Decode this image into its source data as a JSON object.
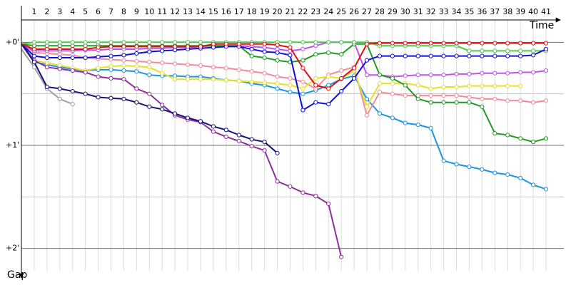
{
  "chart_data": {
    "type": "line",
    "x_label": "Time",
    "y_label": "Gap",
    "x": [
      0,
      1,
      2,
      3,
      4,
      5,
      6,
      7,
      8,
      9,
      10,
      11,
      12,
      13,
      14,
      15,
      16,
      17,
      18,
      19,
      20,
      21,
      22,
      23,
      24,
      25,
      26,
      27,
      28,
      29,
      30,
      31,
      32,
      33,
      34,
      35,
      36,
      37,
      38,
      39,
      40,
      41
    ],
    "xlim": [
      0,
      41
    ],
    "xticks": [
      1,
      2,
      3,
      4,
      5,
      6,
      7,
      8,
      9,
      10,
      11,
      12,
      13,
      14,
      15,
      16,
      17,
      18,
      19,
      20,
      21,
      22,
      23,
      24,
      25,
      26,
      27,
      28,
      29,
      30,
      31,
      32,
      33,
      34,
      35,
      36,
      37,
      38,
      39,
      40,
      41
    ],
    "ylim": [
      -13,
      133
    ],
    "yticks": [
      {
        "value": 0,
        "label": "+0'"
      },
      {
        "value": 60,
        "label": "+1'"
      },
      {
        "value": 120,
        "label": "+2'"
      }
    ],
    "minor_yticks": [
      30,
      90
    ],
    "grid": true,
    "series": [
      {
        "name": "Light blue",
        "color": "#1a94e6",
        "values": [
          1,
          11.5,
          13,
          14.5,
          15.5,
          16.5,
          16,
          16,
          16.5,
          17,
          19,
          19.5,
          19.5,
          20,
          20,
          21,
          22,
          22.5,
          24,
          25,
          27,
          29,
          30,
          28,
          25,
          21.5,
          19.5,
          33,
          41.5,
          44,
          47,
          48,
          50,
          69,
          71,
          72.5,
          74,
          76,
          77,
          79,
          83,
          85.5
        ]
      },
      {
        "name": "Pink",
        "color": "#f28a9a",
        "values": [
          1,
          6,
          6.5,
          7,
          7.5,
          9,
          9.5,
          10,
          10.5,
          11,
          11.5,
          12,
          12.5,
          13,
          13.5,
          14.5,
          15,
          16,
          17,
          18,
          20,
          21,
          23,
          27,
          19,
          16.5,
          14.5,
          42.5,
          29,
          30,
          31,
          31,
          31,
          31,
          31,
          32,
          33,
          33,
          34,
          34,
          35,
          34
        ]
      },
      {
        "name": "Yellow",
        "color": "#e6e02a",
        "values": [
          1,
          10.5,
          12,
          13.5,
          15,
          16.5,
          15,
          14,
          13.5,
          14,
          14.5,
          18,
          21.5,
          21.5,
          21.5,
          21.5,
          22,
          22.5,
          23,
          23.5,
          24,
          25,
          27,
          21,
          20,
          21,
          16.5,
          37.5,
          24,
          24,
          24,
          25,
          27,
          26,
          26,
          25.5,
          25.5,
          25.5,
          25.5,
          25.5,
          null,
          null
        ]
      },
      {
        "name": "Violet",
        "color": "#c052ee",
        "values": [
          1,
          5,
          5,
          5,
          5,
          4.5,
          4.5,
          4,
          4,
          4,
          3.5,
          3.5,
          3,
          3,
          2.5,
          2,
          2,
          2,
          2.5,
          3,
          4,
          5,
          4,
          2,
          0,
          0,
          0,
          19,
          19,
          20,
          19.5,
          19,
          19,
          19,
          18.5,
          18.5,
          18,
          18,
          18,
          17.5,
          17.5,
          16.5
        ]
      },
      {
        "name": "Purple",
        "color": "#8e2f9c",
        "values": [
          1,
          10.5,
          14.5,
          15.5,
          16.5,
          17.5,
          20,
          21,
          21.5,
          27,
          30,
          36.5,
          42.5,
          45,
          46.5,
          52,
          55,
          57.5,
          60.5,
          63,
          81,
          84,
          87.5,
          89.5,
          94,
          125,
          null,
          null,
          null,
          null,
          null,
          null,
          null,
          null,
          null,
          null,
          null,
          null,
          null,
          null,
          null,
          null
        ]
      },
      {
        "name": "Gray",
        "color": "#a0a0a0",
        "values": [
          4,
          14.5,
          27,
          33,
          36,
          null,
          null,
          null,
          null,
          null,
          null,
          null,
          null,
          null,
          null,
          null,
          null,
          null,
          null,
          null,
          null,
          null,
          null,
          null,
          null,
          null,
          null,
          null,
          null,
          null,
          null,
          null,
          null,
          null,
          null,
          null,
          null,
          null,
          null,
          null,
          null,
          null
        ]
      },
      {
        "name": "Navy",
        "color": "#14147a",
        "values": [
          1,
          11.5,
          26,
          27,
          28.5,
          30,
          32,
          32.5,
          33,
          35,
          37.5,
          39,
          41.5,
          44,
          46,
          49,
          51,
          54,
          56.5,
          58,
          64.5,
          null,
          null,
          null,
          null,
          null,
          null,
          null,
          null,
          null,
          null,
          null,
          null,
          null,
          null,
          null,
          null,
          null,
          null,
          null,
          null,
          null
        ]
      },
      {
        "name": "Dark green",
        "color": "#239a23",
        "values": [
          1,
          2,
          2,
          2,
          2,
          2,
          2,
          2,
          2,
          2,
          2,
          2,
          2,
          2,
          2,
          2,
          2,
          2,
          8,
          9,
          10.5,
          11.5,
          10.5,
          7,
          6,
          7,
          1,
          1,
          19,
          21,
          25,
          33,
          35,
          35,
          35,
          35,
          37.5,
          53,
          54,
          56,
          58,
          56
        ]
      },
      {
        "name": "Light green",
        "color": "#4cc84c",
        "values": [
          1,
          0,
          0,
          0,
          0,
          0,
          0,
          0,
          0,
          0,
          0,
          0,
          0,
          0,
          0,
          0,
          0,
          0,
          0,
          0,
          0,
          0,
          0,
          0,
          0,
          0,
          0,
          0,
          2,
          2,
          2,
          2,
          2,
          2,
          2,
          5,
          5,
          5,
          5,
          5,
          5,
          5
        ]
      },
      {
        "name": "Blue",
        "color": "#1010d8",
        "values": [
          1,
          8,
          9,
          9,
          9,
          9,
          8.5,
          8,
          7.5,
          6.5,
          5.5,
          5,
          4.5,
          4,
          3.5,
          3,
          2.5,
          2.5,
          4,
          5.5,
          6,
          7.5,
          39.5,
          35,
          36,
          28.5,
          21,
          10.5,
          8,
          8,
          8,
          8,
          8,
          8,
          8,
          8,
          8,
          8,
          8,
          8,
          7.5,
          4
        ]
      },
      {
        "name": "Red",
        "color": "#e01010",
        "values": [
          1,
          4,
          4,
          4,
          4,
          4,
          3,
          2.5,
          2.5,
          2.5,
          2.5,
          2.5,
          2.5,
          2.5,
          2.5,
          1,
          1,
          1,
          1,
          1,
          1.5,
          3,
          15,
          25,
          27,
          21,
          15,
          1,
          0.5,
          0.5,
          0.5,
          0.5,
          0.5,
          0.5,
          0.5,
          0.5,
          0.5,
          0.5,
          0.5,
          0.5,
          0.5,
          0.5
        ]
      }
    ]
  }
}
